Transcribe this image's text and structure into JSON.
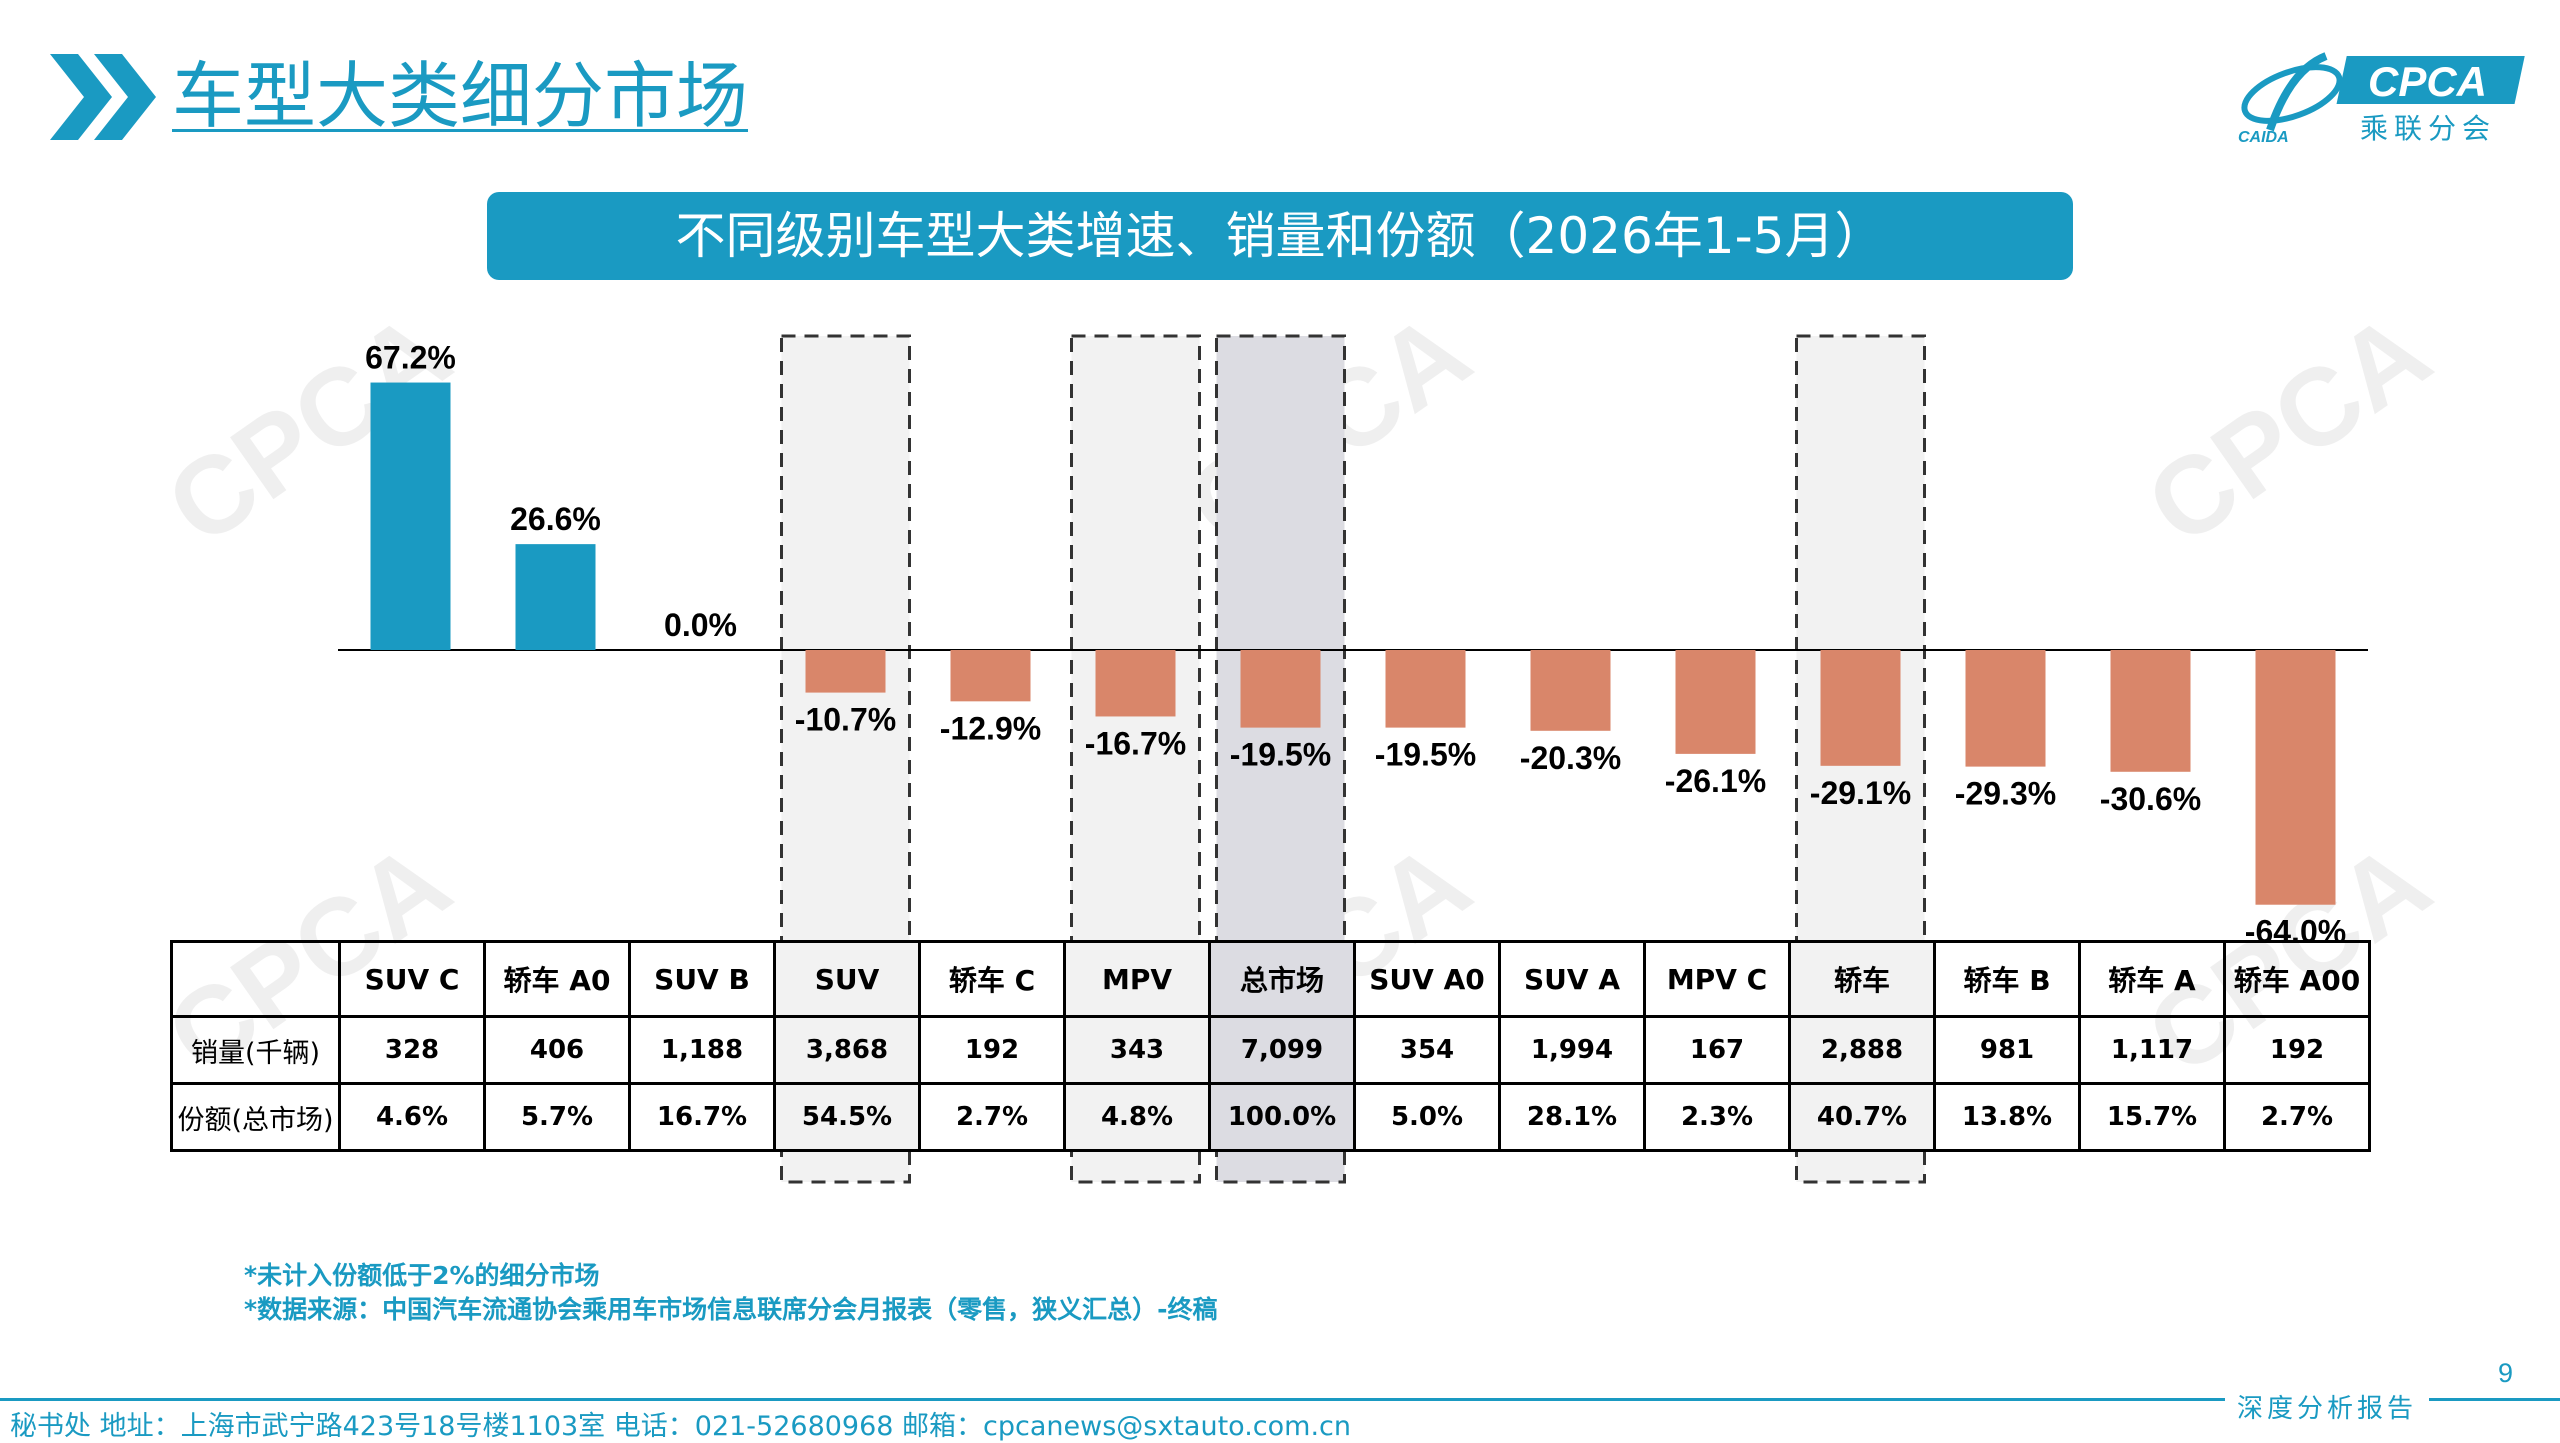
{
  "header": {
    "title": "车型大类细分市场",
    "logo_brand": "CPCA",
    "logo_subtitle": "乘联分会",
    "logo_small": "CAIDA"
  },
  "subtitle": "不同级别车型大类增速、销量和份额（2026年1-5月）",
  "chart_data": {
    "type": "bar",
    "categories": [
      "SUV C",
      "轿车 A0",
      "SUV B",
      "SUV",
      "轿车 C",
      "MPV",
      "总市场",
      "SUV A0",
      "SUV A",
      "MPV C",
      "轿车",
      "轿车 B",
      "轿车 A",
      "轿车 A00"
    ],
    "values": [
      67.2,
      26.6,
      0.0,
      -10.7,
      -12.9,
      -16.7,
      -19.5,
      -19.5,
      -20.3,
      -26.1,
      -29.1,
      -29.3,
      -30.6,
      -64.0
    ],
    "value_labels": [
      "67.2%",
      "26.6%",
      "0.0%",
      "-10.7%",
      "-12.9%",
      "-16.7%",
      "-19.5%",
      "-19.5%",
      "-20.3%",
      "-26.1%",
      "-29.1%",
      "-29.3%",
      "-30.6%",
      "-64.0%"
    ],
    "highlighted": [
      "SUV",
      "MPV",
      "总市场",
      "轿车"
    ],
    "total_market": "总市场",
    "colors": {
      "positive": "#1a9ac2",
      "negative": "#d9866a",
      "highlight_bg": "#f2f2f2",
      "total_bg": "#dcdce2"
    }
  },
  "table": {
    "rows": [
      {
        "label": "销量(千辆)",
        "values": [
          "328",
          "406",
          "1,188",
          "3,868",
          "192",
          "343",
          "7,099",
          "354",
          "1,994",
          "167",
          "2,888",
          "981",
          "1,117",
          "192"
        ]
      },
      {
        "label": "份额(总市场)",
        "values": [
          "4.6%",
          "5.7%",
          "16.7%",
          "54.5%",
          "2.7%",
          "4.8%",
          "100.0%",
          "5.0%",
          "28.1%",
          "2.3%",
          "40.7%",
          "13.8%",
          "15.7%",
          "2.7%"
        ]
      }
    ]
  },
  "footnotes": [
    "*未计入份额低于2%的细分市场",
    "*数据来源：中国汽车流通协会乘用车市场信息联席分会月报表（零售，狭义汇总）-终稿"
  ],
  "footer": {
    "text": "秘书处  地址：上海市武宁路423号18号楼1103室  电话：021-52680968  邮箱：cpcanews@sxtauto.com.cn",
    "tag": "深度分析报告",
    "page_number": "9"
  },
  "colors": {
    "accent": "#1a9ac2"
  }
}
